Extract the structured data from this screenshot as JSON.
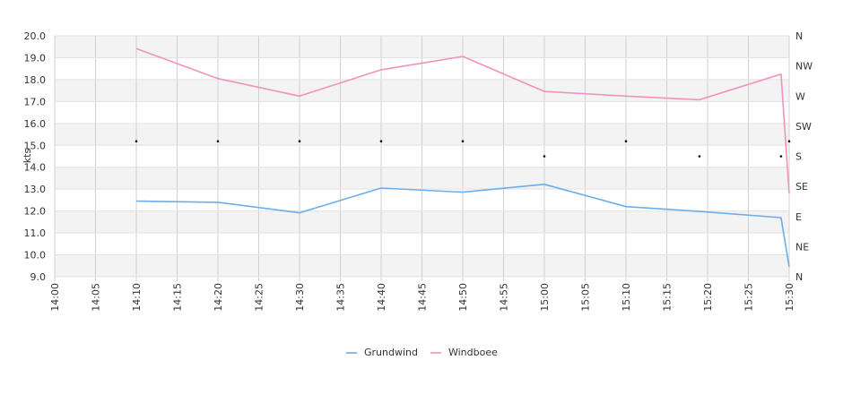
{
  "chart_data": {
    "type": "line",
    "ylabel": "kts",
    "ylim": [
      9.0,
      20.0
    ],
    "y_ticks": [
      "9.0",
      "10.0",
      "11.0",
      "12.0",
      "13.0",
      "14.0",
      "15.0",
      "16.0",
      "17.0",
      "18.0",
      "19.0",
      "20.0"
    ],
    "x_range": [
      "14:00",
      "15:30"
    ],
    "x_ticks": [
      "14:00",
      "14:05",
      "14:10",
      "14:15",
      "14:20",
      "14:25",
      "14:30",
      "14:35",
      "14:40",
      "14:45",
      "14:50",
      "14:55",
      "15:00",
      "15:05",
      "15:10",
      "15:15",
      "15:20",
      "15:25",
      "15:30"
    ],
    "right_axis_ticks": [
      "N",
      "NE",
      "E",
      "SE",
      "S",
      "SW",
      "W",
      "NW",
      "N"
    ],
    "grid": true,
    "legend_position": "bottom-center",
    "series": [
      {
        "name": "Grundwind",
        "color": "#6aaeea",
        "points": [
          {
            "x": "14:10",
            "y": 12.45
          },
          {
            "x": "14:20",
            "y": 12.4
          },
          {
            "x": "14:30",
            "y": 11.92
          },
          {
            "x": "14:40",
            "y": 13.05
          },
          {
            "x": "14:50",
            "y": 12.86
          },
          {
            "x": "15:00",
            "y": 13.22
          },
          {
            "x": "15:10",
            "y": 12.2
          },
          {
            "x": "15:19",
            "y": 11.98
          },
          {
            "x": "15:29",
            "y": 11.7
          },
          {
            "x": "15:30",
            "y": 9.45
          }
        ]
      },
      {
        "name": "Windboee",
        "color": "#f291c0",
        "points": [
          {
            "x": "14:10",
            "y": 19.42
          },
          {
            "x": "14:20",
            "y": 18.05
          },
          {
            "x": "14:30",
            "y": 17.25
          },
          {
            "x": "14:40",
            "y": 18.45
          },
          {
            "x": "14:50",
            "y": 19.06
          },
          {
            "x": "15:00",
            "y": 17.46
          },
          {
            "x": "15:10",
            "y": 17.25
          },
          {
            "x": "15:19",
            "y": 17.08
          },
          {
            "x": "15:29",
            "y": 18.25
          },
          {
            "x": "15:30",
            "y": 12.8
          }
        ]
      }
    ],
    "direction_points": [
      {
        "x": "14:10",
        "dir": "SSW"
      },
      {
        "x": "14:20",
        "dir": "SSW"
      },
      {
        "x": "14:30",
        "dir": "SSW"
      },
      {
        "x": "14:40",
        "dir": "SSW"
      },
      {
        "x": "14:50",
        "dir": "SSW"
      },
      {
        "x": "15:00",
        "dir": "S"
      },
      {
        "x": "15:10",
        "dir": "SSW"
      },
      {
        "x": "15:19",
        "dir": "S"
      },
      {
        "x": "15:29",
        "dir": "S"
      },
      {
        "x": "15:30",
        "dir": "SSW"
      }
    ]
  }
}
